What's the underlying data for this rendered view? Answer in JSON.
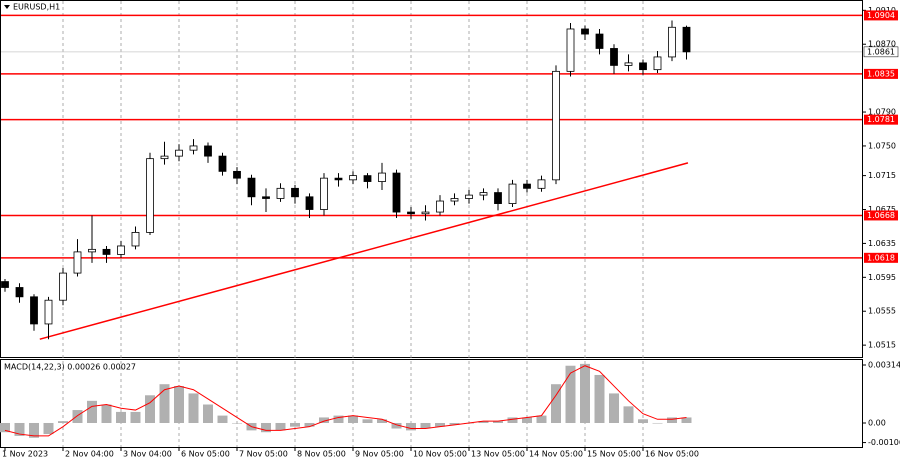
{
  "chart_data": [
    {
      "type": "candlestick",
      "title": "EURUSD,H1",
      "categories": [
        "1 Nov 2023",
        null,
        null,
        null,
        "2 Nov 04:00",
        null,
        null,
        null,
        "3 Nov 04:00",
        null,
        null,
        null,
        "6 Nov 05:00",
        null,
        null,
        null,
        "7 Nov 05:00",
        null,
        null,
        null,
        "8 Nov 05:00",
        null,
        null,
        null,
        "9 Nov 05:00",
        null,
        null,
        null,
        "10 Nov 05:00",
        null,
        null,
        null,
        "13 Nov 05:00",
        null,
        null,
        null,
        "14 Nov 05:00",
        null,
        null,
        null,
        "15 Nov 05:00",
        null,
        null,
        null,
        "16 Nov 05:00",
        null,
        null,
        null
      ],
      "open": [
        1.059,
        1.0583,
        1.0572,
        1.054,
        1.0568,
        1.06,
        1.0625,
        1.0628,
        1.0622,
        1.0632,
        1.0648,
        1.0735,
        1.0738,
        1.0745,
        1.075,
        1.0738,
        1.072,
        1.0712,
        1.069,
        1.0688,
        1.07,
        1.069,
        1.0675,
        1.0712,
        1.071,
        1.0715,
        1.0708,
        1.0718,
        1.0672,
        1.067,
        1.0672,
        1.0685,
        1.0688,
        1.0692,
        1.0695,
        1.0682,
        1.0705,
        1.07,
        1.071,
        1.0838,
        1.0888,
        1.0882,
        1.0865,
        1.0845,
        1.0848,
        1.084,
        1.0855,
        1.089
      ],
      "high": [
        1.0593,
        1.0588,
        1.0575,
        1.0572,
        1.0606,
        1.064,
        1.0668,
        1.0632,
        1.0638,
        1.0655,
        1.0742,
        1.0755,
        1.0752,
        1.0758,
        1.0754,
        1.0742,
        1.0725,
        1.0716,
        1.07,
        1.0706,
        1.0704,
        1.0694,
        1.0718,
        1.0718,
        1.072,
        1.0718,
        1.073,
        1.0722,
        1.0678,
        1.068,
        1.0692,
        1.0694,
        1.0698,
        1.07,
        1.07,
        1.071,
        1.071,
        1.0715,
        1.0845,
        1.0895,
        1.0892,
        1.0888,
        1.087,
        1.0858,
        1.0852,
        1.0862,
        1.0898,
        1.0892
      ],
      "low": [
        1.0578,
        1.0565,
        1.0532,
        1.0522,
        1.0562,
        1.0596,
        1.0612,
        1.0612,
        1.0618,
        1.0628,
        1.0645,
        1.0728,
        1.0732,
        1.074,
        1.073,
        1.0715,
        1.0705,
        1.068,
        1.0672,
        1.0684,
        1.0682,
        1.0665,
        1.0668,
        1.0702,
        1.0705,
        1.07,
        1.0698,
        1.0665,
        1.0664,
        1.0662,
        1.0668,
        1.068,
        1.0682,
        1.0686,
        1.0674,
        1.0678,
        1.0695,
        1.0696,
        1.0705,
        1.0832,
        1.0875,
        1.0858,
        1.0835,
        1.0838,
        1.0834,
        1.0836,
        1.085,
        1.0852
      ],
      "close": [
        1.0583,
        1.0572,
        1.054,
        1.0568,
        1.06,
        1.0625,
        1.0628,
        1.0622,
        1.0632,
        1.0648,
        1.0735,
        1.0738,
        1.0745,
        1.075,
        1.0738,
        1.072,
        1.0712,
        1.069,
        1.0688,
        1.07,
        1.069,
        1.0675,
        1.0712,
        1.071,
        1.0715,
        1.0708,
        1.0718,
        1.0672,
        1.067,
        1.0672,
        1.0685,
        1.0688,
        1.0692,
        1.0695,
        1.0682,
        1.0705,
        1.07,
        1.071,
        1.0838,
        1.0888,
        1.0882,
        1.0865,
        1.0845,
        1.0848,
        1.084,
        1.0855,
        1.089,
        1.0861
      ],
      "color": "#000000",
      "ylim": [
        1.0501,
        1.0921
      ],
      "yticks": [
        {
          "value": 1.091,
          "label": "1.0910"
        },
        {
          "value": 1.087,
          "label": "1.0870"
        },
        {
          "value": 1.079,
          "label": "1.0790"
        },
        {
          "value": 1.075,
          "label": "1.0750"
        },
        1.0715,
        1.0675,
        1.0635,
        1.0595,
        1.0555,
        1.0515
      ],
      "levels": [
        1.0904,
        1.0835,
        1.0781,
        1.0668,
        1.0618
      ],
      "level_color": "#ff0000",
      "last_price": 1.0861,
      "trendline": {
        "x": [
          2.4,
          47.1
        ],
        "y": [
          1.0522,
          1.073
        ]
      }
    },
    {
      "type": "macd",
      "title": "MACD(14,22,3) 0.00026 0.00027",
      "values": [
        -0.0005,
        -0.0007,
        -0.0008,
        -0.0006,
        0.0001,
        0.0007,
        0.0012,
        0.001,
        0.0006,
        0.0006,
        0.0015,
        0.0021,
        0.002,
        0.0016,
        0.001,
        0.0004,
        0.0,
        -0.0004,
        -0.0005,
        -0.0004,
        -0.0002,
        -0.0002,
        0.0003,
        0.0004,
        0.0004,
        0.0002,
        0.0002,
        -0.0003,
        -0.0004,
        -0.0003,
        -0.0002,
        -0.0001,
        0.0,
        0.0001,
        0.0001,
        0.0003,
        0.0003,
        0.0004,
        0.0021,
        0.0031,
        0.0032,
        0.0026,
        0.0016,
        0.0009,
        0.0002,
        0.0,
        0.0003,
        0.0003
      ],
      "signal": [
        -0.0004,
        -0.0006,
        -0.0007,
        -0.0007,
        -0.0002,
        0.0004,
        0.0009,
        0.001,
        0.0008,
        0.0007,
        0.0011,
        0.0018,
        0.002,
        0.0018,
        0.0013,
        0.0008,
        0.0003,
        -0.0002,
        -0.0004,
        -0.0004,
        -0.0003,
        -0.0002,
        0.0001,
        0.0003,
        0.0004,
        0.0003,
        0.0002,
        -0.0001,
        -0.0003,
        -0.0003,
        -0.0002,
        -0.0001,
        0.0,
        0.0001,
        0.0001,
        0.0002,
        0.0003,
        0.0004,
        0.0015,
        0.0027,
        0.0031,
        0.0028,
        0.002,
        0.0012,
        0.0005,
        0.0002,
        0.0002,
        0.0003
      ],
      "color": "#b0b0b0",
      "signal_color": "#ff0000",
      "ylim": [
        -0.0013,
        0.00341
      ],
      "yticks": [
        0.00314,
        {
          "value": 0,
          "label": "0.00"
        },
        -0.00106
      ]
    }
  ]
}
